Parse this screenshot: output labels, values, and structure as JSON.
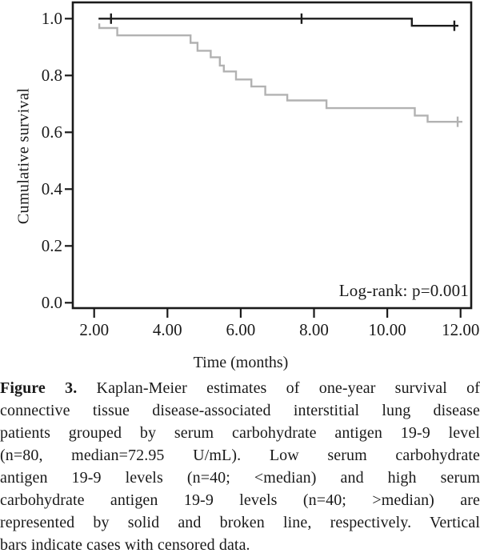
{
  "caption": {
    "label": "Figure 3.",
    "lines": [
      "Kaplan-Meier estimates of one-year survival of",
      "connective tissue disease-associated interstitial lung disease",
      "patients grouped by serum carbohydrate antigen 19-9 level",
      "(n=80, median=72.95 U/mL). Low serum carbohydrate",
      "antigen 19-9 levels (n=40; <median) and high serum",
      "carbohydrate antigen 19-9 levels (n=40; >median) are",
      "represented by solid and broken line, respectively. Vertical",
      "bars indicate cases with censored data."
    ]
  },
  "chart_data": {
    "type": "line",
    "subtype": "kaplan-meier-step",
    "title": "",
    "xlabel": "Time (months)",
    "ylabel": "Cumulative survival",
    "annotation": "Log-rank: p=0.001",
    "legend": "none",
    "grid": false,
    "frame_color": "#1a1a1a",
    "x_axis": {
      "min": 1.417,
      "max": 12.29,
      "ticks": [
        2,
        4,
        6,
        8,
        10,
        12
      ],
      "tick_labels": [
        "2.00",
        "4.00",
        "6.00",
        "8.00",
        "10.00",
        "12.00"
      ]
    },
    "y_axis": {
      "min": -0.0189,
      "max": 1.0572,
      "ticks": [
        1.0,
        0.8,
        0.6,
        0.4,
        0.2,
        0.0
      ],
      "tick_labels": [
        "1.0",
        "0.8",
        "0.6",
        "0.4",
        "0.2",
        "0.0"
      ]
    },
    "series": [
      {
        "name": "Low serum carbohydrate antigen 19-9 (n=40, solid black line)",
        "color": "#1c1c1c",
        "points": [
          [
            2.12,
            1.0
          ],
          [
            10.67,
            1.0
          ],
          [
            10.67,
            0.975
          ],
          [
            11.94,
            0.975
          ]
        ],
        "censors": [
          [
            2.46,
            1.0
          ],
          [
            7.66,
            1.0
          ],
          [
            11.83,
            0.975
          ]
        ]
      },
      {
        "name": "High serum carbohydrate antigen 19-9 (n=40, gray line)",
        "color": "#b2b2b2",
        "points": [
          [
            2.14,
            0.983
          ],
          [
            2.14,
            0.967
          ],
          [
            2.63,
            0.967
          ],
          [
            2.63,
            0.941
          ],
          [
            4.63,
            0.941
          ],
          [
            4.63,
            0.915
          ],
          [
            4.82,
            0.915
          ],
          [
            4.82,
            0.887
          ],
          [
            5.18,
            0.887
          ],
          [
            5.18,
            0.864
          ],
          [
            5.43,
            0.864
          ],
          [
            5.43,
            0.835
          ],
          [
            5.54,
            0.835
          ],
          [
            5.54,
            0.814
          ],
          [
            5.87,
            0.814
          ],
          [
            5.87,
            0.786
          ],
          [
            6.29,
            0.786
          ],
          [
            6.29,
            0.761
          ],
          [
            6.67,
            0.761
          ],
          [
            6.67,
            0.732
          ],
          [
            7.27,
            0.732
          ],
          [
            7.27,
            0.712
          ],
          [
            8.34,
            0.712
          ],
          [
            8.34,
            0.685
          ],
          [
            10.75,
            0.685
          ],
          [
            10.75,
            0.659
          ],
          [
            11.1,
            0.659
          ],
          [
            11.1,
            0.637
          ],
          [
            12.05,
            0.637
          ]
        ],
        "censors": [
          [
            11.92,
            0.637
          ]
        ]
      }
    ]
  }
}
